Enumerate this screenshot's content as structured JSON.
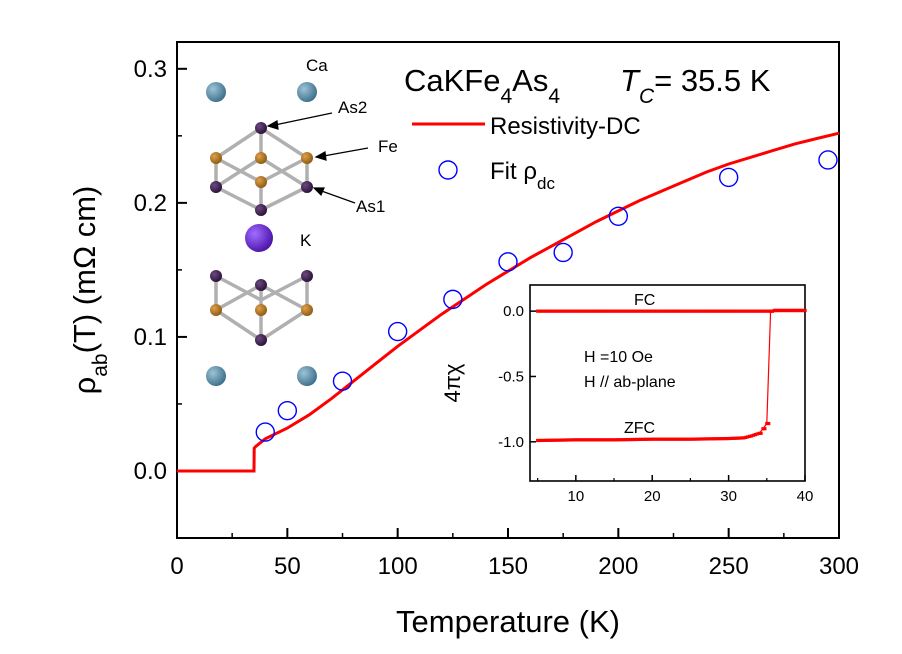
{
  "chart_data": [
    {
      "type": "line",
      "title": "CaKFe4As4",
      "title_parts": {
        "compound_main": "CaKFe",
        "sub_a": "4",
        "compound_mid": "As",
        "sub_b": "4",
        "tc_symbol": "T",
        "tc_sub": "C",
        "tc_value": "= 35.5 K"
      },
      "xlabel": "Temperature (K)",
      "ylabel_parts": {
        "rho": "ρ",
        "sub": "ab",
        "rest": "(T) (mΩ cm)"
      },
      "xlim": [
        0,
        300
      ],
      "ylim": [
        -0.05,
        0.32
      ],
      "x_ticks": [
        0,
        50,
        100,
        150,
        200,
        250,
        300
      ],
      "x_tick_labels": [
        "0",
        "50",
        "100",
        "150",
        "200",
        "250",
        "300"
      ],
      "y_ticks": [
        0.0,
        0.1,
        0.2,
        0.3
      ],
      "y_tick_labels": [
        "0.0",
        "0.1",
        "0.2",
        "0.3"
      ],
      "grid": false,
      "legend_position": "top-right",
      "series": [
        {
          "name": "Resistivity-DC",
          "style": "line",
          "color": "#ff0000",
          "x": [
            0,
            34.9,
            35,
            35.5,
            40,
            50,
            60,
            70,
            80,
            90,
            100,
            110,
            120,
            130,
            140,
            150,
            160,
            170,
            180,
            190,
            200,
            210,
            220,
            230,
            240,
            250,
            260,
            270,
            280,
            290,
            300
          ],
          "y": [
            0.0,
            0.0,
            0.017,
            0.018,
            0.024,
            0.032,
            0.042,
            0.054,
            0.067,
            0.08,
            0.093,
            0.105,
            0.117,
            0.128,
            0.139,
            0.149,
            0.159,
            0.168,
            0.177,
            0.186,
            0.194,
            0.202,
            0.209,
            0.216,
            0.223,
            0.229,
            0.234,
            0.239,
            0.244,
            0.248,
            0.252
          ]
        },
        {
          "name_parts": {
            "main": "Fit ρ",
            "sub": "dc"
          },
          "style": "scatter-open-circle",
          "color": "#0000ff",
          "x": [
            40,
            50,
            75,
            100,
            125,
            150,
            175,
            200,
            250,
            295
          ],
          "y": [
            0.029,
            0.045,
            0.067,
            0.104,
            0.128,
            0.156,
            0.163,
            0.19,
            0.219,
            0.232
          ]
        }
      ],
      "structure_labels": [
        "Ca",
        "As2",
        "Fe",
        "As1",
        "K"
      ]
    },
    {
      "type": "line",
      "ylabel": "4πχ",
      "xlim": [
        4,
        40
      ],
      "ylim": [
        -1.3,
        0.2
      ],
      "x_ticks": [
        10,
        20,
        30,
        40
      ],
      "x_tick_labels": [
        "10",
        "20",
        "30",
        "40"
      ],
      "y_ticks": [
        0.0,
        -0.5,
        -1.0
      ],
      "y_tick_labels": [
        "0.0",
        "-0.5",
        "-1.0"
      ],
      "annotations": [
        "FC",
        "H =10 Oe",
        "H // ab-plane",
        "ZFC"
      ],
      "series": [
        {
          "label": "FC",
          "color": "#ff0000",
          "x": [
            5,
            10,
            15,
            20,
            25,
            30,
            34,
            35,
            35.5,
            36,
            38,
            40
          ],
          "y": [
            0.0,
            0.0,
            0.0,
            0.0,
            0.0,
            0.0,
            0.0,
            0.0,
            0.0,
            0.005,
            0.005,
            0.005
          ]
        },
        {
          "label": "ZFC",
          "color": "#ff0000",
          "x": [
            5,
            10,
            15,
            20,
            25,
            30,
            32,
            33,
            34,
            34.5,
            35,
            35.5,
            36,
            38,
            40
          ],
          "y": [
            -0.99,
            -0.985,
            -0.985,
            -0.98,
            -0.98,
            -0.975,
            -0.97,
            -0.955,
            -0.935,
            -0.9,
            -0.86,
            0.0,
            0.005,
            0.005,
            0.005
          ]
        }
      ]
    }
  ]
}
